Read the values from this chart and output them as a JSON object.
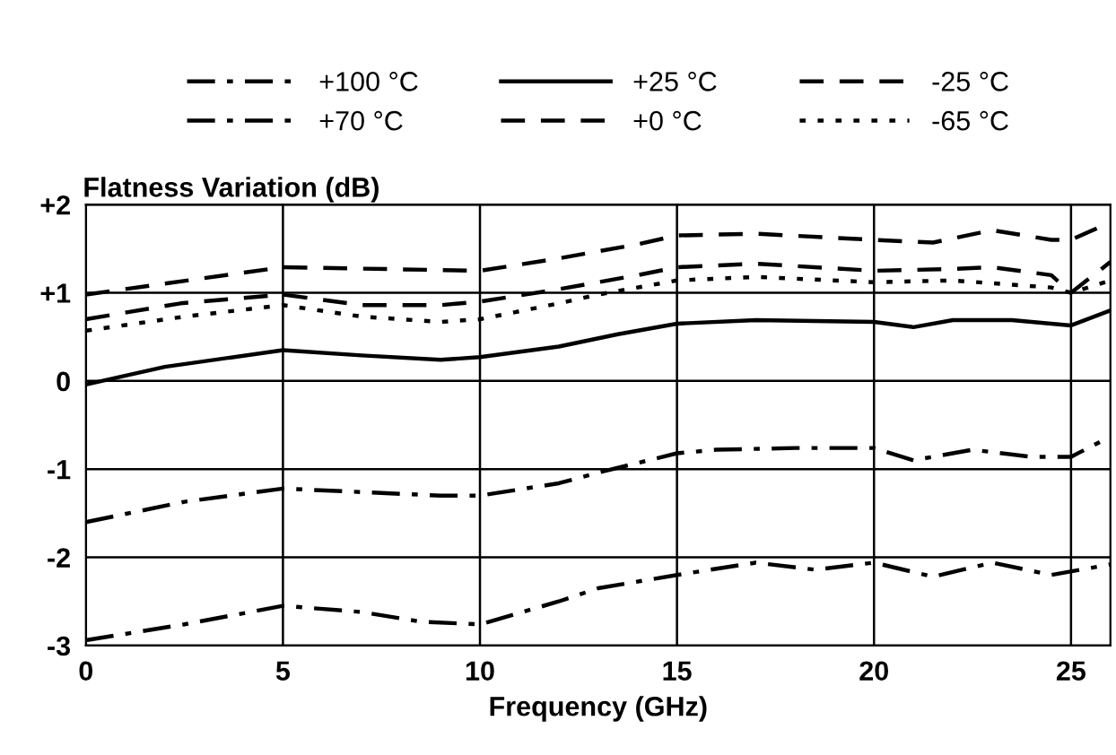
{
  "chart_data": {
    "type": "line",
    "xlabel": "Frequency (GHz)",
    "ylabel": "Flatness Variation (dB)",
    "xlim": [
      0,
      26
    ],
    "xticks": [
      0,
      5,
      10,
      15,
      20,
      25
    ],
    "ylim": [
      -3,
      2
    ],
    "yticks": [
      {
        "value": 2,
        "label": "+2"
      },
      {
        "value": 1,
        "label": "+1"
      },
      0,
      -1,
      -2,
      -3
    ],
    "grid": true,
    "legend": "top",
    "series": [
      {
        "name": "+100 °C",
        "color": "#000000",
        "line_style": "dashdot",
        "x": [
          0,
          2.5,
          5,
          7,
          8.5,
          10,
          12,
          13,
          15,
          17,
          18.5,
          20,
          21.5,
          23,
          24.5,
          26
        ],
        "values": [
          -2.94,
          -2.76,
          -2.55,
          -2.62,
          -2.73,
          -2.76,
          -2.5,
          -2.35,
          -2.2,
          -2.06,
          -2.14,
          -2.06,
          -2.22,
          -2.06,
          -2.2,
          -2.08
        ]
      },
      {
        "name": "+70 °C",
        "color": "#000000",
        "line_style": "dashdot",
        "x": [
          0,
          2.5,
          5,
          7,
          9,
          10,
          12,
          13,
          15,
          16,
          18,
          20,
          21,
          22.5,
          24,
          25,
          26
        ],
        "values": [
          -1.6,
          -1.37,
          -1.22,
          -1.26,
          -1.3,
          -1.3,
          -1.16,
          -1.04,
          -0.82,
          -0.78,
          -0.76,
          -0.76,
          -0.9,
          -0.78,
          -0.86,
          -0.86,
          -0.63
        ]
      },
      {
        "name": "+25 °C",
        "color": "#000000",
        "line_style": "solid",
        "x": [
          0,
          2,
          5,
          7,
          9,
          10,
          12,
          13.5,
          15,
          17,
          20,
          21,
          22,
          23.5,
          25,
          26
        ],
        "values": [
          -0.04,
          0.16,
          0.35,
          0.29,
          0.24,
          0.27,
          0.39,
          0.53,
          0.65,
          0.69,
          0.67,
          0.61,
          0.69,
          0.69,
          0.63,
          0.8
        ]
      },
      {
        "name": "+0 °C",
        "color": "#000000",
        "line_style": "dashed",
        "x": [
          0,
          5,
          10,
          12,
          14,
          15,
          17,
          20,
          21.5,
          23,
          24.5,
          25,
          26
        ],
        "values": [
          0.98,
          1.29,
          1.25,
          1.39,
          1.55,
          1.65,
          1.67,
          1.6,
          1.57,
          1.71,
          1.6,
          1.6,
          1.8
        ]
      },
      {
        "name": "-25 °C",
        "color": "#000000",
        "line_style": "dashed",
        "x": [
          0,
          2.4,
          5,
          7,
          9,
          10,
          12,
          14,
          15,
          17,
          20,
          22,
          23,
          24.5,
          25,
          26
        ],
        "values": [
          0.7,
          0.88,
          0.98,
          0.86,
          0.86,
          0.9,
          1.04,
          1.2,
          1.29,
          1.33,
          1.25,
          1.27,
          1.29,
          1.2,
          1.0,
          1.35
        ]
      },
      {
        "name": "-65 °C",
        "color": "#000000",
        "line_style": "dotted",
        "x": [
          0,
          2.5,
          5,
          7,
          9,
          10,
          12,
          13,
          15,
          17,
          20,
          22,
          24.5,
          25,
          26
        ],
        "values": [
          0.57,
          0.73,
          0.86,
          0.73,
          0.67,
          0.7,
          0.88,
          0.98,
          1.14,
          1.18,
          1.12,
          1.14,
          1.06,
          1.0,
          1.14
        ]
      }
    ]
  }
}
